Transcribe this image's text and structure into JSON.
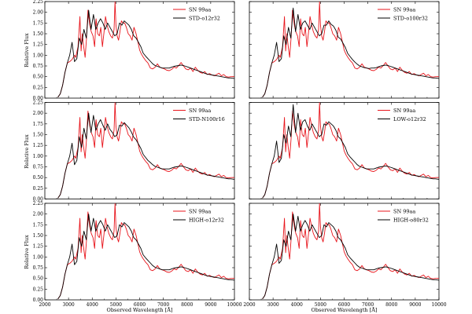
{
  "figure": {
    "ylabel": "Relative Flux",
    "xlabel": "Observed Wavelength [Å]"
  },
  "colors": {
    "observed": "#e8141b",
    "model": "#000000"
  },
  "chart_data": {
    "type": "line",
    "layout": "3x2 grid of panels sharing axes",
    "xlim": [
      2000,
      10000
    ],
    "ylim": [
      0,
      2.25
    ],
    "x_ticks": [
      2000,
      3000,
      4000,
      5000,
      6000,
      7000,
      8000,
      9000,
      10000
    ],
    "y_ticks": [
      0.0,
      0.25,
      0.5,
      0.75,
      1.0,
      1.25,
      1.5,
      1.75,
      2.0,
      2.25
    ],
    "observed": {
      "name": "SN 99aa",
      "x": [
        2550,
        2650,
        2750,
        2850,
        2950,
        3050,
        3150,
        3250,
        3300,
        3400,
        3480,
        3530,
        3580,
        3640,
        3700,
        3760,
        3820,
        3900,
        3960,
        4030,
        4100,
        4160,
        4230,
        4300,
        4360,
        4430,
        4500,
        4560,
        4630,
        4700,
        4780,
        4850,
        4920,
        4960,
        5000,
        5050,
        5110,
        5170,
        5230,
        5300,
        5370,
        5440,
        5520,
        5600,
        5680,
        5760,
        5850,
        5930,
        6000,
        6080,
        6160,
        6250,
        6350,
        6450,
        6550,
        6650,
        6750,
        6850,
        6950,
        7050,
        7150,
        7250,
        7350,
        7450,
        7550,
        7650,
        7750,
        7850,
        7950,
        8050,
        8150,
        8250,
        8350,
        8450,
        8550,
        8650,
        8750,
        8850,
        8950,
        9050,
        9150,
        9250,
        9350,
        9450,
        9550,
        9650,
        9750,
        9850,
        10000
      ],
      "y": [
        0.02,
        0.1,
        0.3,
        0.6,
        0.82,
        0.85,
        0.9,
        1.0,
        0.95,
        1.2,
        1.9,
        1.1,
        1.5,
        1.2,
        0.95,
        1.4,
        2.05,
        1.7,
        1.55,
        1.45,
        1.2,
        1.85,
        1.5,
        1.45,
        1.65,
        1.2,
        1.55,
        1.9,
        1.7,
        1.55,
        1.45,
        1.4,
        1.6,
        2.25,
        1.7,
        1.45,
        1.35,
        1.55,
        1.8,
        1.75,
        1.75,
        1.65,
        1.5,
        1.45,
        1.35,
        1.65,
        1.5,
        1.3,
        1.12,
        1.02,
        0.95,
        0.88,
        0.82,
        0.7,
        0.68,
        0.72,
        0.8,
        0.72,
        0.7,
        0.68,
        0.65,
        0.64,
        0.67,
        0.72,
        0.7,
        0.76,
        0.83,
        0.75,
        0.68,
        0.66,
        0.7,
        0.62,
        0.72,
        0.65,
        0.6,
        0.58,
        0.62,
        0.55,
        0.57,
        0.54,
        0.52,
        0.55,
        0.58,
        0.52,
        0.55,
        0.5,
        0.49,
        0.5,
        0.5
      ]
    },
    "models": [
      {
        "name": "STD-o12r32",
        "x": [
          2550,
          2650,
          2750,
          2850,
          2950,
          3050,
          3150,
          3250,
          3350,
          3450,
          3550,
          3650,
          3750,
          3850,
          3950,
          4050,
          4150,
          4250,
          4350,
          4450,
          4550,
          4650,
          4750,
          4850,
          4950,
          5050,
          5150,
          5250,
          5350,
          5450,
          5550,
          5650,
          5750,
          5850,
          5950,
          6050,
          6150,
          6250,
          6350,
          6450,
          6550,
          6650,
          6750,
          6850,
          6950,
          7050,
          7150,
          7250,
          7350,
          7450,
          7550,
          7650,
          7750,
          7850,
          7950,
          8050,
          8150,
          8250,
          8350,
          8450,
          8550,
          8650,
          8750,
          8850,
          8950,
          9050,
          9150,
          9250,
          9350,
          9450,
          9550,
          9650,
          9750,
          9850,
          10000
        ],
        "y": [
          0.02,
          0.1,
          0.3,
          0.6,
          0.82,
          1.0,
          1.3,
          0.85,
          0.92,
          1.4,
          1.25,
          1.6,
          1.4,
          2.05,
          1.6,
          1.95,
          1.6,
          1.75,
          1.85,
          1.75,
          1.6,
          1.75,
          1.65,
          1.55,
          1.45,
          1.5,
          1.75,
          1.7,
          1.8,
          1.75,
          1.7,
          1.6,
          1.45,
          1.4,
          1.3,
          1.2,
          1.05,
          0.98,
          0.92,
          0.86,
          0.8,
          0.76,
          0.74,
          0.72,
          0.7,
          0.7,
          0.7,
          0.7,
          0.72,
          0.74,
          0.75,
          0.76,
          0.77,
          0.76,
          0.74,
          0.72,
          0.7,
          0.68,
          0.66,
          0.64,
          0.62,
          0.6,
          0.58,
          0.56,
          0.55,
          0.54,
          0.53,
          0.52,
          0.51,
          0.5,
          0.49,
          0.48,
          0.47,
          0.47,
          0.46
        ]
      },
      {
        "name": "STD-o100r32",
        "x": [
          2550,
          2650,
          2750,
          2850,
          2950,
          3050,
          3150,
          3250,
          3350,
          3450,
          3550,
          3650,
          3750,
          3850,
          3950,
          4050,
          4150,
          4250,
          4350,
          4450,
          4550,
          4650,
          4750,
          4850,
          4950,
          5050,
          5150,
          5250,
          5350,
          5450,
          5550,
          5650,
          5750,
          5850,
          5950,
          6050,
          6150,
          6250,
          6350,
          6450,
          6550,
          6650,
          6750,
          6850,
          6950,
          7050,
          7150,
          7250,
          7350,
          7450,
          7550,
          7650,
          7750,
          7850,
          7950,
          8050,
          8150,
          8250,
          8350,
          8450,
          8550,
          8650,
          8750,
          8850,
          8950,
          9050,
          9150,
          9250,
          9350,
          9450,
          9550,
          9650,
          9750,
          9850,
          10000
        ],
        "y": [
          0.02,
          0.1,
          0.3,
          0.6,
          0.82,
          1.0,
          1.3,
          0.85,
          0.92,
          1.45,
          1.25,
          1.65,
          1.4,
          2.1,
          1.55,
          1.95,
          1.6,
          1.75,
          1.8,
          1.7,
          1.6,
          1.75,
          1.65,
          1.55,
          1.45,
          1.5,
          1.7,
          1.7,
          1.8,
          1.72,
          1.68,
          1.58,
          1.42,
          1.38,
          1.28,
          1.18,
          1.04,
          0.97,
          0.9,
          0.84,
          0.79,
          0.75,
          0.73,
          0.71,
          0.7,
          0.69,
          0.7,
          0.7,
          0.71,
          0.73,
          0.75,
          0.76,
          0.77,
          0.76,
          0.74,
          0.72,
          0.7,
          0.68,
          0.66,
          0.64,
          0.62,
          0.6,
          0.58,
          0.56,
          0.55,
          0.54,
          0.53,
          0.52,
          0.51,
          0.5,
          0.49,
          0.48,
          0.47,
          0.47,
          0.46
        ]
      },
      {
        "name": "STD-N100r16",
        "x": [
          2550,
          2650,
          2750,
          2850,
          2950,
          3050,
          3150,
          3250,
          3350,
          3450,
          3550,
          3650,
          3750,
          3850,
          3950,
          4050,
          4150,
          4250,
          4350,
          4450,
          4550,
          4650,
          4750,
          4850,
          4950,
          5050,
          5150,
          5250,
          5350,
          5450,
          5550,
          5650,
          5750,
          5850,
          5950,
          6050,
          6150,
          6250,
          6350,
          6450,
          6550,
          6650,
          6750,
          6850,
          6950,
          7050,
          7150,
          7250,
          7350,
          7450,
          7550,
          7650,
          7750,
          7850,
          7950,
          8050,
          8150,
          8250,
          8350,
          8450,
          8550,
          8650,
          8750,
          8850,
          8950,
          9050,
          9150,
          9250,
          9350,
          9450,
          9550,
          9650,
          9750,
          9850,
          10000
        ],
        "y": [
          0.02,
          0.1,
          0.3,
          0.6,
          0.82,
          1.0,
          1.3,
          0.8,
          0.9,
          1.45,
          1.2,
          1.65,
          1.4,
          2.0,
          1.55,
          1.95,
          1.6,
          1.75,
          1.85,
          1.72,
          1.6,
          1.75,
          1.62,
          1.55,
          1.45,
          1.5,
          1.72,
          1.7,
          1.78,
          1.72,
          1.66,
          1.56,
          1.44,
          1.38,
          1.28,
          1.18,
          1.04,
          0.97,
          0.9,
          0.85,
          0.8,
          0.76,
          0.74,
          0.72,
          0.7,
          0.7,
          0.7,
          0.7,
          0.72,
          0.74,
          0.75,
          0.76,
          0.77,
          0.76,
          0.74,
          0.72,
          0.7,
          0.68,
          0.66,
          0.64,
          0.62,
          0.6,
          0.58,
          0.56,
          0.55,
          0.54,
          0.53,
          0.52,
          0.51,
          0.5,
          0.49,
          0.48,
          0.47,
          0.47,
          0.46
        ]
      },
      {
        "name": "LOW-o12r32",
        "x": [
          2550,
          2650,
          2750,
          2850,
          2950,
          3050,
          3150,
          3250,
          3350,
          3450,
          3550,
          3650,
          3750,
          3850,
          3950,
          4050,
          4150,
          4250,
          4350,
          4450,
          4550,
          4650,
          4750,
          4850,
          4950,
          5050,
          5150,
          5250,
          5350,
          5450,
          5550,
          5650,
          5750,
          5850,
          5950,
          6050,
          6150,
          6250,
          6350,
          6450,
          6550,
          6650,
          6750,
          6850,
          6950,
          7050,
          7150,
          7250,
          7350,
          7450,
          7550,
          7650,
          7750,
          7850,
          7950,
          8050,
          8150,
          8250,
          8350,
          8450,
          8550,
          8650,
          8750,
          8850,
          8950,
          9050,
          9150,
          9250,
          9350,
          9450,
          9550,
          9650,
          9750,
          9850,
          10000
        ],
        "y": [
          0.02,
          0.1,
          0.3,
          0.6,
          0.82,
          1.0,
          1.35,
          0.85,
          0.95,
          1.5,
          1.3,
          1.7,
          1.45,
          2.2,
          1.55,
          2.0,
          1.6,
          1.8,
          1.85,
          1.7,
          1.6,
          1.75,
          1.65,
          1.55,
          1.45,
          1.5,
          1.75,
          1.72,
          1.8,
          1.75,
          1.7,
          1.6,
          1.45,
          1.4,
          1.3,
          1.2,
          1.05,
          0.98,
          0.92,
          0.86,
          0.8,
          0.76,
          0.74,
          0.72,
          0.7,
          0.7,
          0.7,
          0.7,
          0.72,
          0.74,
          0.75,
          0.76,
          0.77,
          0.76,
          0.74,
          0.72,
          0.7,
          0.68,
          0.66,
          0.64,
          0.62,
          0.6,
          0.58,
          0.56,
          0.55,
          0.54,
          0.53,
          0.52,
          0.51,
          0.5,
          0.49,
          0.48,
          0.47,
          0.47,
          0.46
        ]
      },
      {
        "name": "HIGH-o12r32",
        "x": [
          2550,
          2650,
          2750,
          2850,
          2950,
          3050,
          3150,
          3250,
          3350,
          3450,
          3550,
          3650,
          3750,
          3850,
          3950,
          4050,
          4150,
          4250,
          4350,
          4450,
          4550,
          4650,
          4750,
          4850,
          4950,
          5050,
          5150,
          5250,
          5350,
          5450,
          5550,
          5650,
          5750,
          5850,
          5950,
          6050,
          6150,
          6250,
          6350,
          6450,
          6550,
          6650,
          6750,
          6850,
          6950,
          7050,
          7150,
          7250,
          7350,
          7450,
          7550,
          7650,
          7750,
          7850,
          7950,
          8050,
          8150,
          8250,
          8350,
          8450,
          8550,
          8650,
          8750,
          8850,
          8950,
          9050,
          9150,
          9250,
          9350,
          9450,
          9550,
          9650,
          9750,
          9850,
          10000
        ],
        "y": [
          0.02,
          0.1,
          0.3,
          0.6,
          0.82,
          1.0,
          1.3,
          0.82,
          0.9,
          1.45,
          1.25,
          1.6,
          1.4,
          2.0,
          1.6,
          1.9,
          1.6,
          1.75,
          1.85,
          1.75,
          1.6,
          1.75,
          1.65,
          1.55,
          1.45,
          1.5,
          1.75,
          1.7,
          1.8,
          1.75,
          1.7,
          1.6,
          1.45,
          1.4,
          1.3,
          1.2,
          1.05,
          0.98,
          0.92,
          0.86,
          0.8,
          0.76,
          0.74,
          0.72,
          0.7,
          0.7,
          0.7,
          0.7,
          0.72,
          0.74,
          0.75,
          0.76,
          0.77,
          0.76,
          0.74,
          0.72,
          0.7,
          0.68,
          0.66,
          0.64,
          0.62,
          0.6,
          0.58,
          0.56,
          0.55,
          0.54,
          0.53,
          0.52,
          0.51,
          0.5,
          0.49,
          0.48,
          0.47,
          0.47,
          0.46
        ]
      },
      {
        "name": "HIGH-o80r32",
        "x": [
          2550,
          2650,
          2750,
          2850,
          2950,
          3050,
          3150,
          3250,
          3350,
          3450,
          3550,
          3650,
          3750,
          3850,
          3950,
          4050,
          4150,
          4250,
          4350,
          4450,
          4550,
          4650,
          4750,
          4850,
          4950,
          5050,
          5150,
          5250,
          5350,
          5450,
          5550,
          5650,
          5750,
          5850,
          5950,
          6050,
          6150,
          6250,
          6350,
          6450,
          6550,
          6650,
          6750,
          6850,
          6950,
          7050,
          7150,
          7250,
          7350,
          7450,
          7550,
          7650,
          7750,
          7850,
          7950,
          8050,
          8150,
          8250,
          8350,
          8450,
          8550,
          8650,
          8750,
          8850,
          8950,
          9050,
          9150,
          9250,
          9350,
          9450,
          9550,
          9650,
          9750,
          9850,
          10000
        ],
        "y": [
          0.02,
          0.1,
          0.3,
          0.6,
          0.82,
          1.0,
          1.3,
          0.85,
          0.92,
          1.4,
          1.25,
          1.6,
          1.4,
          2.0,
          1.6,
          1.95,
          1.6,
          1.75,
          1.85,
          1.75,
          1.6,
          1.75,
          1.65,
          1.55,
          1.45,
          1.5,
          1.75,
          1.7,
          1.8,
          1.75,
          1.7,
          1.6,
          1.45,
          1.4,
          1.3,
          1.2,
          1.05,
          0.98,
          0.92,
          0.86,
          0.8,
          0.76,
          0.74,
          0.72,
          0.7,
          0.7,
          0.7,
          0.7,
          0.72,
          0.74,
          0.75,
          0.76,
          0.77,
          0.76,
          0.74,
          0.72,
          0.7,
          0.68,
          0.66,
          0.64,
          0.62,
          0.6,
          0.58,
          0.56,
          0.55,
          0.54,
          0.53,
          0.52,
          0.51,
          0.5,
          0.49,
          0.48,
          0.47,
          0.47,
          0.46
        ]
      }
    ]
  }
}
